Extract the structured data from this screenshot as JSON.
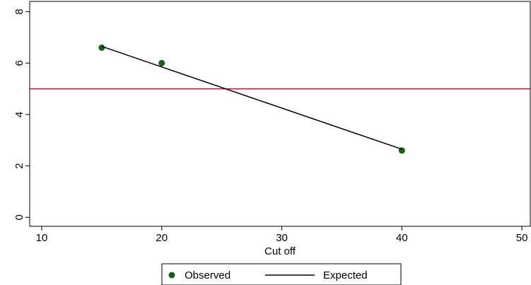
{
  "chart_data": {
    "type": "line",
    "x_label": "Cut off",
    "xlim": [
      9,
      50.7
    ],
    "xticks": [
      10,
      20,
      30,
      40,
      50
    ],
    "ylim": [
      -0.35,
      8.4
    ],
    "yticks": [
      0,
      2,
      4,
      6,
      8
    ],
    "reference_line": {
      "value": 5,
      "color": "#b0103a"
    },
    "series": [
      {
        "name": "Observed",
        "kind": "scatter",
        "color": "#1a5e1a",
        "x": [
          15,
          20,
          40
        ],
        "values": [
          6.6,
          6.0,
          2.6
        ]
      },
      {
        "name": "Expected",
        "kind": "line",
        "color": "#000000",
        "x": [
          15,
          20,
          40
        ],
        "values": [
          6.65,
          5.85,
          2.65
        ]
      }
    ],
    "legend": "bottom"
  }
}
